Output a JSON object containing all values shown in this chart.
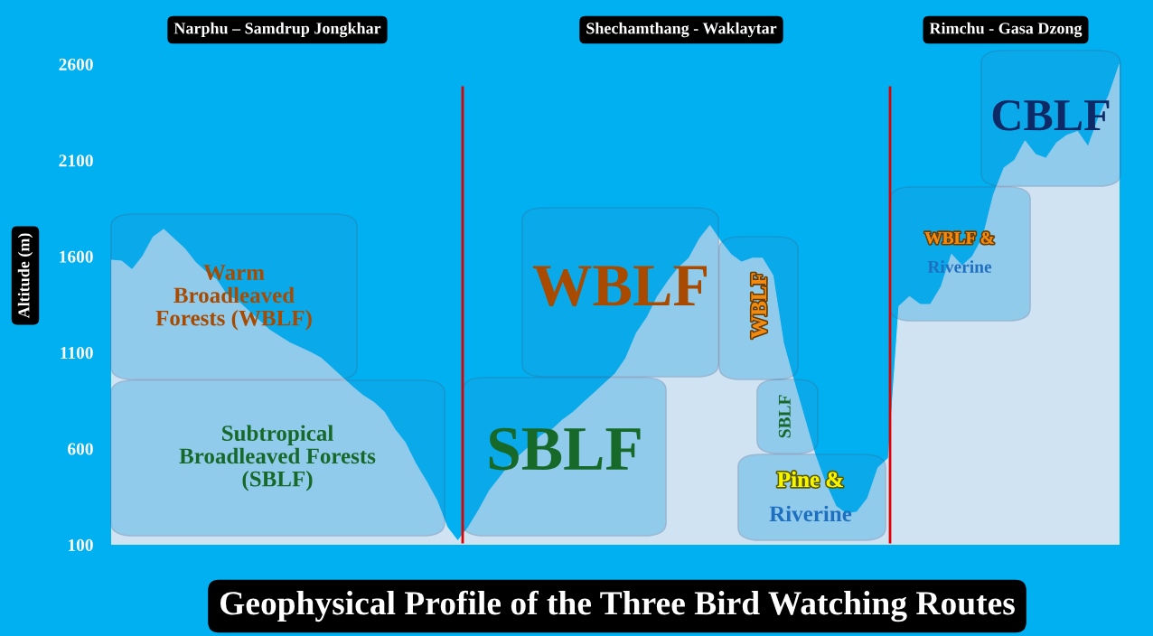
{
  "chart_data": {
    "type": "area",
    "title": "Geophysical Profile of the Three Bird Watching Routes",
    "ylabel": "Altitude (m)",
    "categories": [
      null,
      null,
      null,
      null,
      null,
      null,
      null,
      null,
      null,
      null,
      null,
      null,
      null,
      null,
      null,
      null,
      null,
      null,
      null,
      null,
      null,
      null,
      null,
      null,
      null,
      null,
      null,
      null,
      null,
      null,
      null,
      null,
      null,
      null,
      null,
      null,
      null,
      null,
      null,
      null,
      null,
      null,
      null,
      null,
      null,
      null,
      null,
      null,
      null,
      null,
      null,
      null,
      null,
      null,
      null,
      null,
      null,
      null,
      null,
      null,
      null,
      null,
      null,
      null,
      null,
      null,
      null,
      null,
      null,
      null,
      null,
      null,
      null,
      null,
      null,
      null,
      null,
      null,
      null,
      null,
      null,
      null,
      null,
      null,
      null,
      null,
      null,
      null,
      null,
      null,
      null,
      null,
      null,
      null,
      null,
      null,
      null
    ],
    "series": [
      {
        "color": "#cfe3f3",
        "values": [
          1580,
          1575,
          1530,
          1600,
          1700,
          1740,
          1690,
          1640,
          1570,
          1520,
          1480,
          1400,
          1370,
          1320,
          1270,
          1220,
          1185,
          1150,
          1125,
          1100,
          1070,
          1020,
          970,
          920,
          875,
          840,
          790,
          700,
          630,
          520,
          430,
          330,
          190,
          120,
          190,
          280,
          380,
          450,
          520,
          570,
          620,
          670,
          700,
          750,
          790,
          840,
          890,
          940,
          990,
          1070,
          1200,
          1280,
          1390,
          1470,
          1540,
          1590,
          1690,
          1760,
          1680,
          1610,
          1570,
          1590,
          1590,
          1500,
          1150,
          950,
          760,
          570,
          420,
          300,
          260,
          270,
          340,
          500,
          550,
          1340,
          1390,
          1350,
          1350,
          1440,
          1610,
          1550,
          1600,
          1700,
          1920,
          2060,
          2100,
          2200,
          2130,
          2110,
          2190,
          2230,
          2250,
          2170,
          2320,
          2440,
          2600
        ]
      }
    ],
    "ylim": [
      100,
      2600
    ],
    "yticks": [
      100,
      600,
      1100,
      1600,
      2100,
      2600
    ],
    "tick_labels": "y",
    "annotations": [
      "Narphu – Samdrup Jongkhar",
      "Shechamthang - Waklaytar",
      "Rimchu - Gasa Dzong",
      "Warm\nBroadleaved\nForests (WBLF)",
      "Subtropical\nBroadleaved Forests\n(SBLF)",
      "WBLF",
      "SBLF",
      "WBLF",
      "SBLF",
      "Pine &",
      "Riverine",
      "CBLF",
      "WBLF &",
      "Riverine"
    ]
  }
}
